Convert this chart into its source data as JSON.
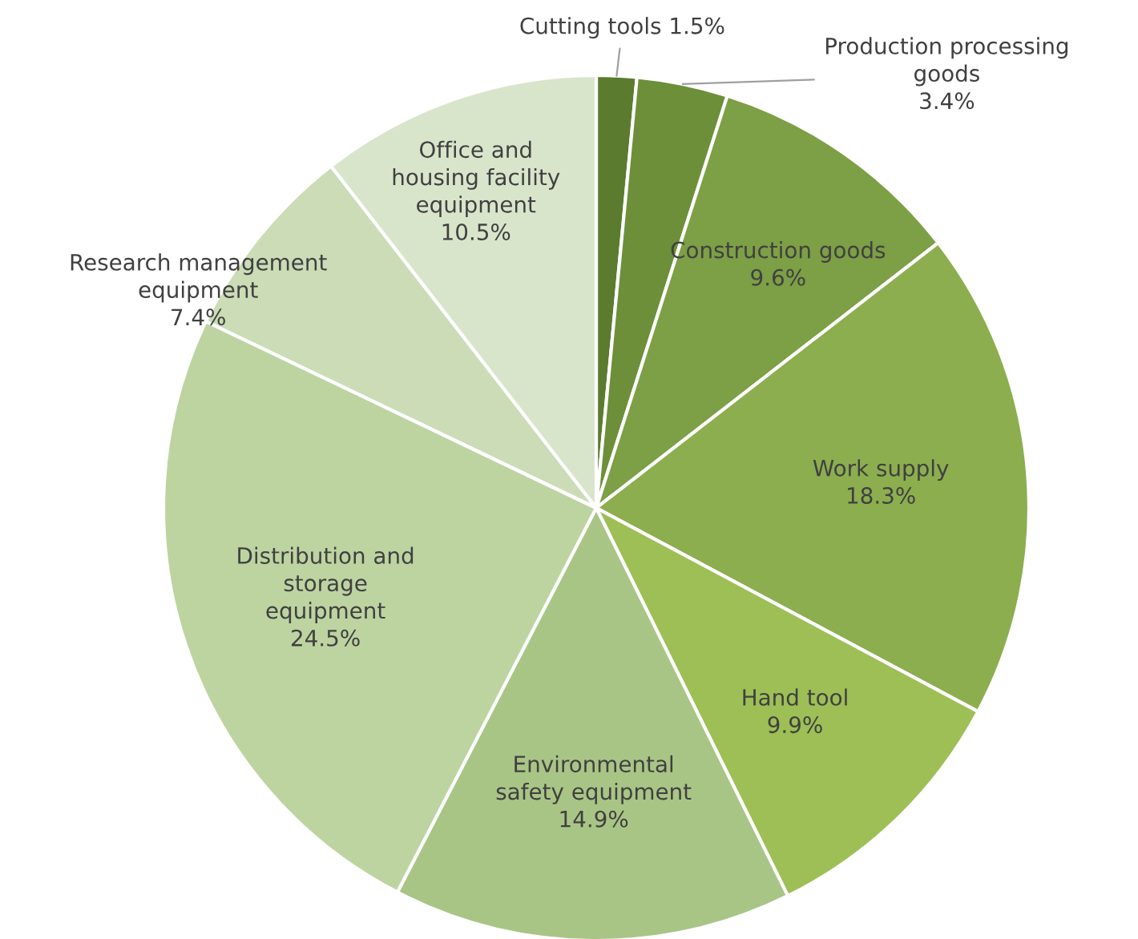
{
  "chart_data": {
    "type": "pie",
    "categories": [
      "Cutting tools",
      "Production processing\ngoods",
      "Construction goods",
      "Work supply",
      "Hand tool",
      "Environmental\nsafety equipment",
      "Distribution and\nstorage\nequipment",
      "Research management\nequipment",
      "Office and\nhousing facility\nequipment"
    ],
    "values": [
      1.5,
      3.4,
      9.6,
      18.3,
      9.9,
      14.9,
      24.5,
      7.4,
      10.5
    ],
    "colors": [
      "#5b7b2f",
      "#6d8f3a",
      "#7d9f45",
      "#8cae4f",
      "#9dbf56",
      "#a9c586",
      "#bdd4a1",
      "#cbdcb6",
      "#d9e5cb"
    ],
    "value_labels": [
      "1.5%",
      "3.4%",
      "9.6%",
      "18.3%",
      "9.9%",
      "14.9%",
      "24.5%",
      "7.4%",
      "10.5%"
    ]
  }
}
